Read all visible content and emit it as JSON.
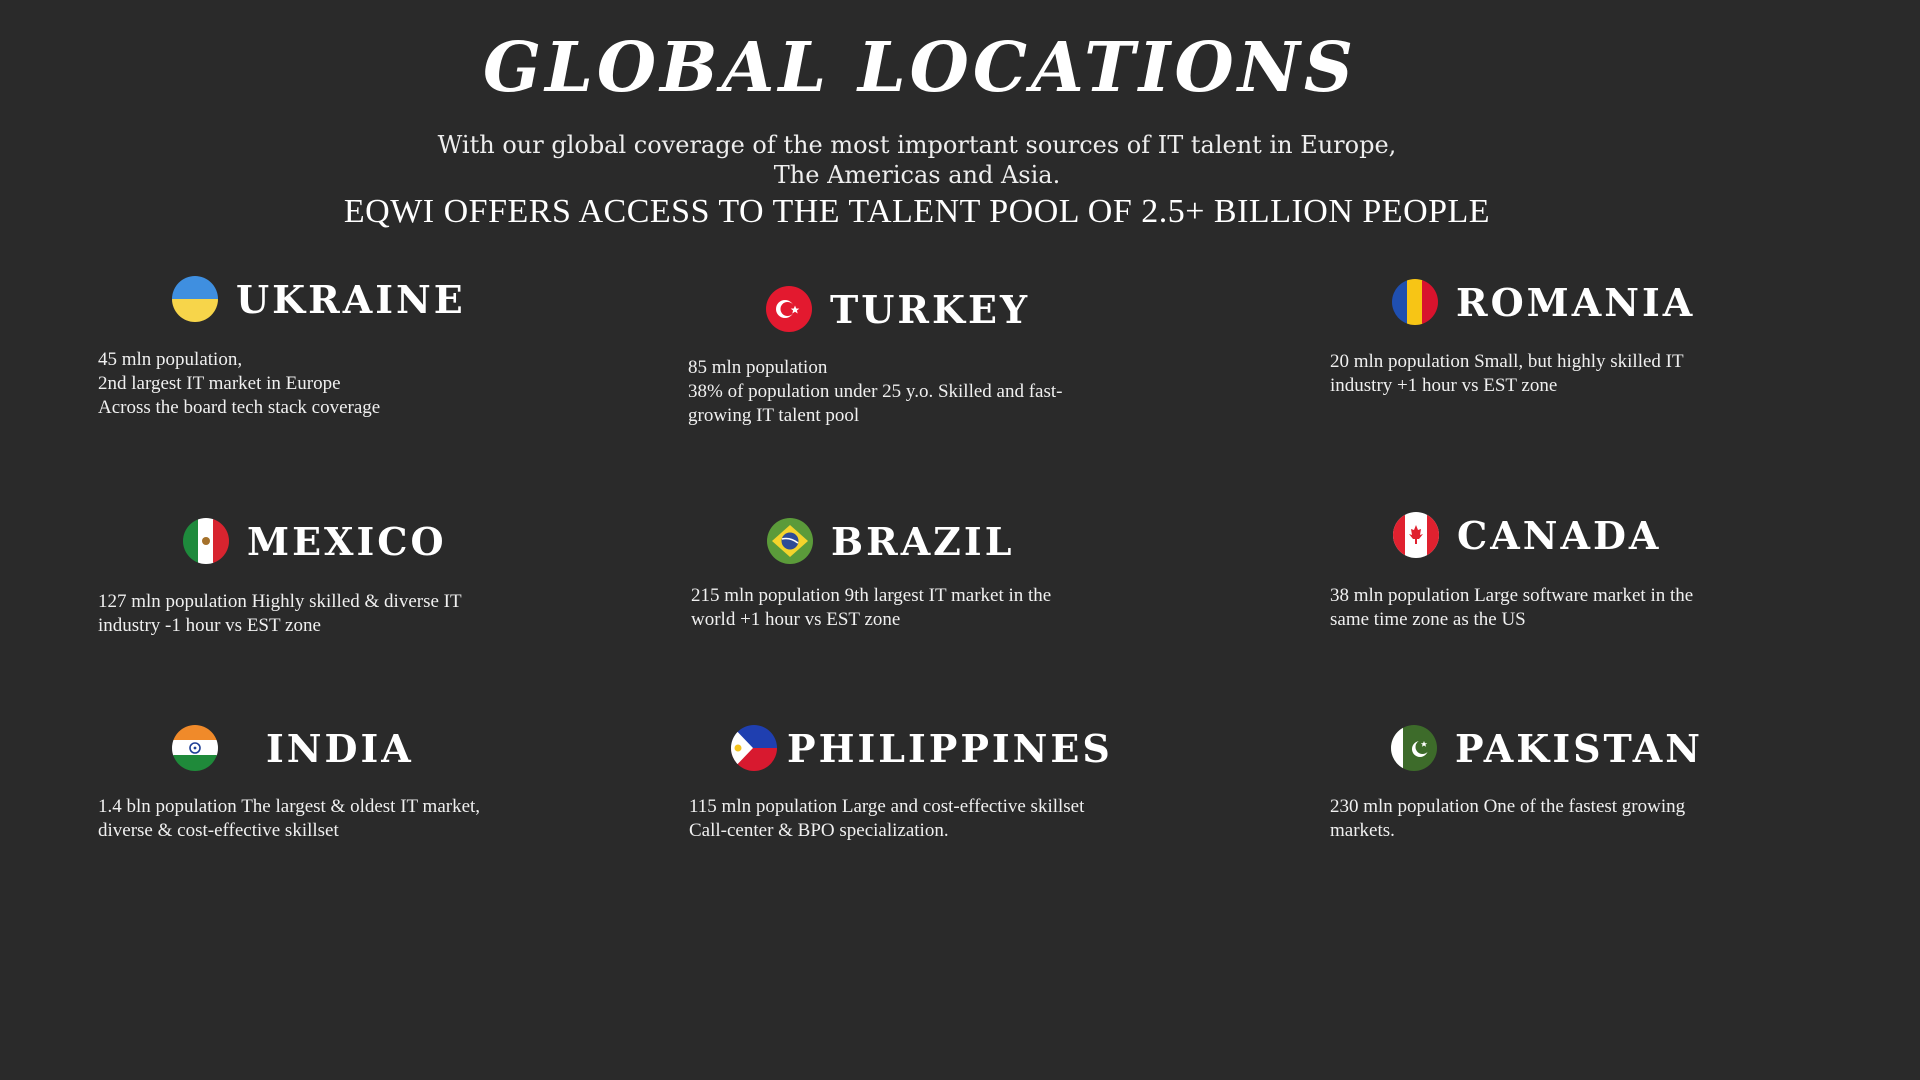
{
  "header": {
    "title": "GLOBAL LOCATIONS",
    "subtitle_line1": "With our global coverage of the most important sources of IT talent in Europe,",
    "subtitle_line2": "The Americas and Asia.",
    "headline": "EQWI OFFERS ACCESS TO THE TALENT POOL OF 2.5+ BILLION PEOPLE"
  },
  "locations": [
    {
      "name": "UKRAINE",
      "flag_icon": "ukraine-flag-icon",
      "text": "45 mln population,\n 2nd largest IT market in Europe\n Across the board tech stack coverage"
    },
    {
      "name": "TURKEY",
      "flag_icon": "turkey-flag-icon",
      "text": "85 mln population\n38% of population under 25 y.o. Skilled and fast-\ngrowing IT talent pool"
    },
    {
      "name": "ROMANIA",
      "flag_icon": "romania-flag-icon",
      "text": "20 mln population Small, but highly skilled IT\nindustry +1 hour vs EST zone"
    },
    {
      "name": "MEXICO",
      "flag_icon": "mexico-flag-icon",
      "text": "127 mln population Highly skilled & diverse IT\nindustry -1 hour vs EST zone"
    },
    {
      "name": "BRAZIL",
      "flag_icon": "brazil-flag-icon",
      "text": "215 mln population 9th largest IT market in the\nworld +1 hour vs EST zone"
    },
    {
      "name": "CANADA",
      "flag_icon": "canada-flag-icon",
      "text": " 38 mln population Large software market in the\nsame time zone as the US"
    },
    {
      "name": "INDIA",
      "flag_icon": "india-flag-icon",
      "text": "1.4 bln population The largest & oldest IT market,\ndiverse & cost-effective skillset"
    },
    {
      "name": "PHILIPPINES",
      "flag_icon": "philippines-flag-icon",
      "text": "115 mln population Large and cost-effective skillset\nCall-center & BPO specialization."
    },
    {
      "name": "PAKISTAN",
      "flag_icon": "pakistan-flag-icon",
      "text": "230 mln population One of the fastest growing\nmarkets."
    }
  ]
}
